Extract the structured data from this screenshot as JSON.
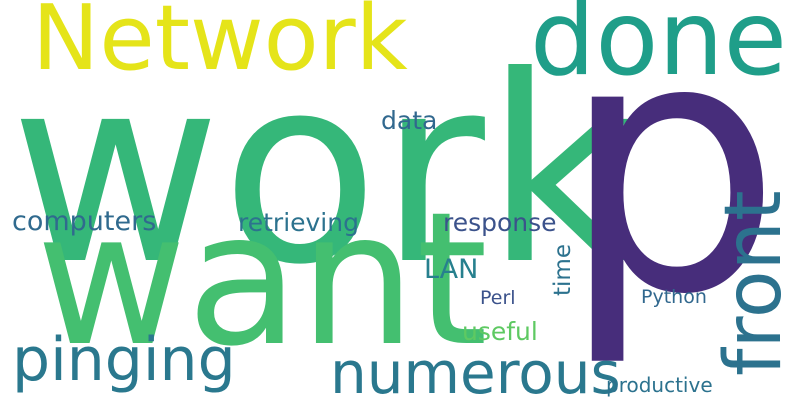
{
  "words": [
    {
      "text": "work",
      "color": "#35b779"
    },
    {
      "text": "p",
      "color": "#472d7b"
    },
    {
      "text": "want",
      "color": "#44bf70"
    },
    {
      "text": "Network",
      "color": "#e5e419"
    },
    {
      "text": "done",
      "color": "#1f9e89"
    },
    {
      "text": "front",
      "color": "#2c728e"
    },
    {
      "text": "pinging",
      "color": "#2a788e"
    },
    {
      "text": "numerous",
      "color": "#2a788e"
    },
    {
      "text": "computers",
      "color": "#306a8e"
    },
    {
      "text": "retrieving",
      "color": "#2c728e"
    },
    {
      "text": "response",
      "color": "#3b528b"
    },
    {
      "text": "data",
      "color": "#31688e"
    },
    {
      "text": "LAN",
      "color": "#27808e"
    },
    {
      "text": "time",
      "color": "#2c728e"
    },
    {
      "text": "Perl",
      "color": "#3b528b"
    },
    {
      "text": "useful",
      "color": "#5ec962"
    },
    {
      "text": "Python",
      "color": "#31688e"
    },
    {
      "text": "productive",
      "color": "#2c728e"
    }
  ]
}
